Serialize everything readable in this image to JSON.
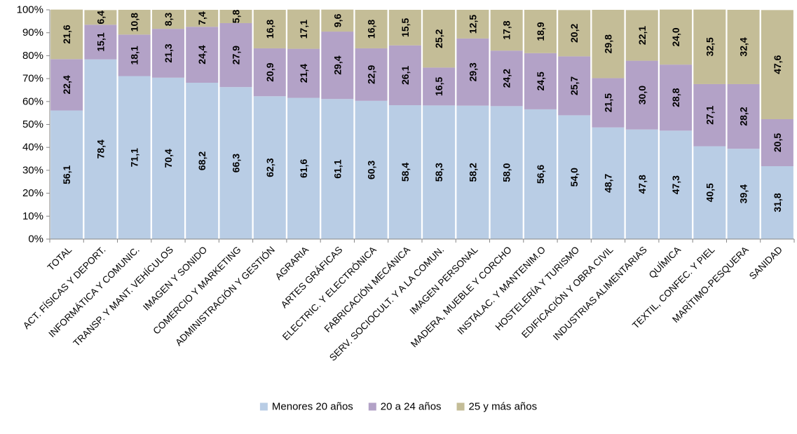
{
  "chart_data": {
    "type": "bar",
    "stacked": true,
    "percent": true,
    "categories": [
      "TOTAL",
      "ACT. FÍSICAS Y DEPORT.",
      "INFORMÁTICA Y COMUNIC.",
      "TRANSP. Y MANT. VEHÍCULOS",
      "IMAGEN Y SONIDO",
      "COMERCIO Y MARKETING",
      "ADMINISTRACIÓN Y GESTIÓN",
      "AGRARIA",
      "ARTES GRÁFICAS",
      "ELECTRIC. Y ELECTRÓNICA",
      "FABRICACIÓN MECÁNICA",
      "SERV. SOCIOCULT. Y A LA COMUN.",
      "IMAGEN PERSONAL",
      "MADERA, MUEBLE Y CORCHO",
      "INSTALAC. Y MANTENIM.O",
      "HOSTELERÍA Y TURISMO",
      "EDIFICACIÓN Y OBRA CIVIL",
      "INDUSTRIAS ALIMENTARIAS",
      "QUÍMICA",
      "TEXTIL, CONFEC. Y PIEL",
      "MARÍTIMO-PESQUERA",
      "SANIDAD"
    ],
    "series": [
      {
        "name": "Menores 20 años",
        "color": "#B9CDE5",
        "values": [
          56.1,
          78.4,
          71.1,
          70.4,
          68.2,
          66.3,
          62.3,
          61.6,
          61.1,
          60.3,
          58.4,
          58.3,
          58.2,
          58.0,
          56.6,
          54.0,
          48.7,
          47.8,
          47.3,
          40.5,
          39.4,
          31.8
        ],
        "labels": [
          "56,1",
          "78,4",
          "71,1",
          "70,4",
          "68,2",
          "66,3",
          "62,3",
          "61,6",
          "61,1",
          "60,3",
          "58,4",
          "58,3",
          "58,2",
          "58,0",
          "56,6",
          "54,0",
          "48,7",
          "47,8",
          "47,3",
          "40,5",
          "39,4",
          "31,8"
        ]
      },
      {
        "name": "20 a 24 años",
        "color": "#B3A2C7",
        "values": [
          22.4,
          15.1,
          18.1,
          21.3,
          24.4,
          27.9,
          20.9,
          21.4,
          29.4,
          22.9,
          26.1,
          16.5,
          29.3,
          24.2,
          24.5,
          25.7,
          21.5,
          30.0,
          28.8,
          27.1,
          28.2,
          20.5
        ],
        "labels": [
          "22,4",
          "15,1",
          "18,1",
          "21,3",
          "24,4",
          "27,9",
          "20,9",
          "21,4",
          "29,4",
          "22,9",
          "26,1",
          "16,5",
          "29,3",
          "24,2",
          "24,5",
          "25,7",
          "21,5",
          "30,0",
          "28,8",
          "27,1",
          "28,2",
          "20,5"
        ]
      },
      {
        "name": "25 y más años",
        "color": "#C4BD97",
        "values": [
          21.6,
          6.4,
          10.8,
          8.3,
          7.4,
          5.8,
          16.8,
          17.1,
          9.6,
          16.8,
          15.5,
          25.2,
          12.5,
          17.8,
          18.9,
          20.2,
          29.8,
          22.1,
          24.0,
          32.5,
          32.4,
          47.6
        ],
        "labels": [
          "21,6",
          "6,4",
          "10,8",
          "8,3",
          "7,4",
          "5,8",
          "16,8",
          "17,1",
          "9,6",
          "16,8",
          "15,5",
          "25,2",
          "12,5",
          "17,8",
          "18,9",
          "20,2",
          "29,8",
          "22,1",
          "24,0",
          "32,5",
          "32,4",
          "47,6"
        ]
      }
    ],
    "ylim": [
      0,
      100
    ],
    "yticks": [
      "0%",
      "10%",
      "20%",
      "30%",
      "40%",
      "50%",
      "60%",
      "70%",
      "80%",
      "90%",
      "100%"
    ],
    "grid": false,
    "legend_position": "bottom",
    "title": "",
    "xlabel": "",
    "ylabel": ""
  }
}
